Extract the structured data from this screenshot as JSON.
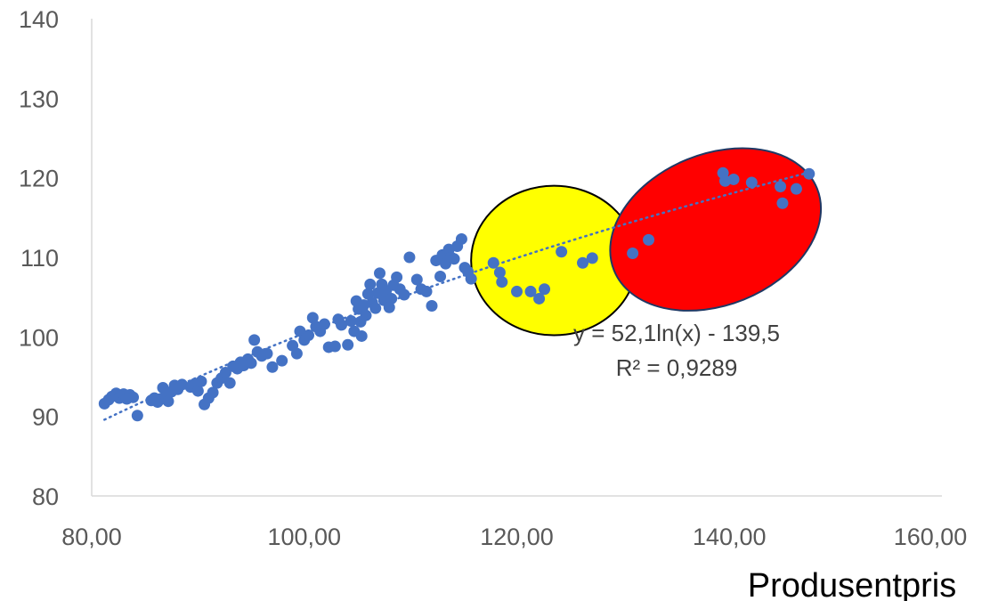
{
  "chart_data": {
    "type": "scatter",
    "xlabel": "Produsentpris",
    "ylabel": "",
    "xlim": [
      80,
      160
    ],
    "ylim": [
      80,
      140
    ],
    "x_ticks": [
      80,
      100,
      120,
      140,
      160
    ],
    "x_tick_labels": [
      "80,00",
      "100,00",
      "120,00",
      "140,00",
      "160,00"
    ],
    "y_ticks": [
      80,
      90,
      100,
      110,
      120,
      130,
      140
    ],
    "y_tick_labels": [
      "80",
      "90",
      "100",
      "110",
      "120",
      "130",
      "140"
    ],
    "grid": false,
    "legend": "none",
    "series": [
      {
        "color": "#4472C4",
        "points": [
          [
            81.2,
            91.6
          ],
          [
            81.6,
            92.1
          ],
          [
            81.9,
            92.5
          ],
          [
            82.3,
            92.9
          ],
          [
            82.6,
            92.3
          ],
          [
            83.0,
            92.8
          ],
          [
            83.3,
            92.2
          ],
          [
            83.6,
            92.7
          ],
          [
            83.9,
            92.4
          ],
          [
            84.3,
            90.1
          ],
          [
            85.6,
            92.0
          ],
          [
            85.9,
            92.3
          ],
          [
            86.2,
            91.8
          ],
          [
            86.5,
            92.2
          ],
          [
            86.7,
            93.6
          ],
          [
            87.0,
            92.5
          ],
          [
            87.2,
            91.9
          ],
          [
            87.5,
            93.1
          ],
          [
            87.8,
            93.9
          ],
          [
            88.1,
            93.4
          ],
          [
            88.5,
            94.0
          ],
          [
            89.3,
            93.7
          ],
          [
            89.7,
            94.1
          ],
          [
            90.0,
            93.2
          ],
          [
            90.3,
            94.4
          ],
          [
            90.6,
            91.5
          ],
          [
            91.0,
            92.3
          ],
          [
            91.4,
            93.0
          ],
          [
            91.8,
            94.2
          ],
          [
            92.2,
            94.8
          ],
          [
            92.6,
            95.5
          ],
          [
            93.0,
            94.2
          ],
          [
            93.3,
            96.3
          ],
          [
            93.7,
            96.0
          ],
          [
            94.0,
            96.8
          ],
          [
            94.3,
            96.4
          ],
          [
            94.7,
            97.2
          ],
          [
            95.0,
            96.7
          ],
          [
            95.3,
            99.6
          ],
          [
            95.6,
            98.1
          ],
          [
            96.0,
            97.6
          ],
          [
            96.5,
            97.9
          ],
          [
            97.0,
            96.2
          ],
          [
            97.9,
            97.0
          ],
          [
            98.9,
            98.9
          ],
          [
            99.3,
            97.9
          ],
          [
            99.6,
            100.7
          ],
          [
            100.0,
            99.6
          ],
          [
            100.4,
            100.2
          ],
          [
            100.8,
            102.4
          ],
          [
            101.1,
            101.3
          ],
          [
            101.5,
            100.7
          ],
          [
            101.9,
            101.6
          ],
          [
            102.3,
            98.7
          ],
          [
            102.9,
            98.8
          ],
          [
            103.2,
            102.2
          ],
          [
            103.5,
            101.5
          ],
          [
            104.1,
            99.0
          ],
          [
            104.4,
            102.0
          ],
          [
            104.7,
            100.7
          ],
          [
            104.9,
            104.5
          ],
          [
            105.1,
            103.5
          ],
          [
            105.3,
            101.9
          ],
          [
            105.4,
            100.1
          ],
          [
            105.6,
            104.0
          ],
          [
            105.8,
            102.7
          ],
          [
            106.0,
            105.4
          ],
          [
            106.2,
            106.6
          ],
          [
            106.4,
            104.3
          ],
          [
            106.7,
            103.6
          ],
          [
            106.9,
            105.5
          ],
          [
            107.1,
            108.0
          ],
          [
            107.3,
            106.6
          ],
          [
            107.5,
            104.6
          ],
          [
            107.7,
            105.8
          ],
          [
            108.0,
            103.7
          ],
          [
            108.2,
            104.8
          ],
          [
            108.4,
            106.5
          ],
          [
            108.7,
            107.5
          ],
          [
            109.0,
            106.0
          ],
          [
            109.4,
            105.3
          ],
          [
            109.9,
            110.0
          ],
          [
            110.6,
            107.2
          ],
          [
            111.0,
            106.0
          ],
          [
            111.5,
            105.7
          ],
          [
            112.0,
            103.9
          ],
          [
            112.4,
            109.6
          ],
          [
            112.8,
            107.6
          ],
          [
            113.0,
            110.3
          ],
          [
            113.3,
            109.2
          ],
          [
            113.6,
            111.0
          ],
          [
            113.8,
            110.0
          ],
          [
            114.1,
            109.8
          ],
          [
            114.4,
            111.4
          ],
          [
            114.8,
            112.3
          ],
          [
            115.1,
            108.7
          ],
          [
            115.4,
            108.2
          ],
          [
            115.7,
            107.3
          ],
          [
            117.8,
            109.3
          ],
          [
            118.4,
            108.1
          ],
          [
            118.6,
            106.9
          ],
          [
            120.0,
            105.7
          ],
          [
            121.3,
            105.7
          ],
          [
            122.1,
            104.8
          ],
          [
            122.6,
            106.0
          ],
          [
            124.2,
            110.7
          ],
          [
            126.2,
            109.3
          ],
          [
            127.1,
            109.9
          ],
          [
            130.9,
            110.5
          ],
          [
            132.4,
            112.2
          ],
          [
            139.4,
            120.6
          ],
          [
            139.6,
            119.6
          ],
          [
            140.4,
            119.8
          ],
          [
            142.1,
            119.4
          ],
          [
            144.8,
            118.9
          ],
          [
            145.0,
            116.8
          ],
          [
            146.3,
            118.6
          ],
          [
            147.5,
            120.5
          ]
        ]
      }
    ],
    "trendline": {
      "type": "logarithmic",
      "a": 52.1,
      "b": -139.5,
      "x_range": [
        81.2,
        147.5
      ],
      "color": "#4472C4"
    },
    "annotations": [
      {
        "text": "y = 52,1ln(x) - 139,5"
      },
      {
        "text": "R² = 0,9289"
      }
    ],
    "highlight_ellipses": [
      {
        "center": [
          123.5,
          109.6
        ],
        "radius_x": 7.8,
        "radius_y": 9.4,
        "fill": "#FFFF00",
        "stroke": "#000000"
      },
      {
        "center": [
          138.7,
          113.5
        ],
        "radius_x": 10.3,
        "radius_y": 9.5,
        "rotation_deg": -22,
        "fill": "#FF0000",
        "stroke": "#1F3864"
      }
    ]
  }
}
